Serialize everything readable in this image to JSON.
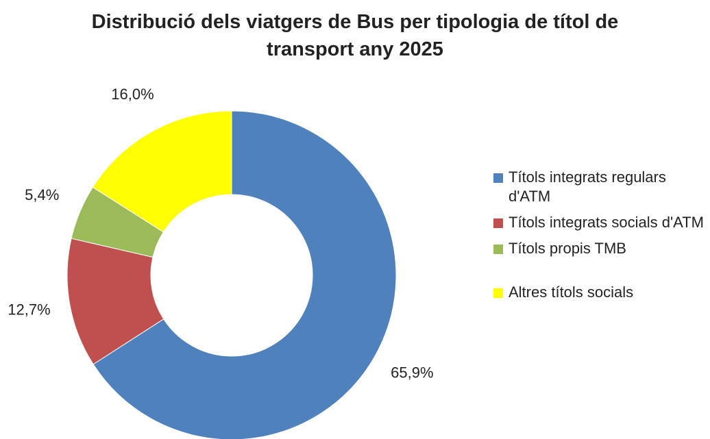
{
  "chart_data": {
    "type": "donut",
    "title": "Distribució dels viatgers de Bus per tipologia de títol de transport any 2025",
    "categories": [
      "Títols integrats regulars d'ATM",
      "Títols integrats socials d'ATM",
      "Títols propis TMB",
      "Altres títols socials"
    ],
    "values": [
      65.9,
      12.7,
      5.4,
      16.0
    ],
    "value_labels": [
      "65,9%",
      "12,7%",
      "5,4%",
      "16,0%"
    ],
    "colors": [
      "#4f81bd",
      "#c0504d",
      "#9bbb59",
      "#ffff00"
    ],
    "legend": "right"
  }
}
